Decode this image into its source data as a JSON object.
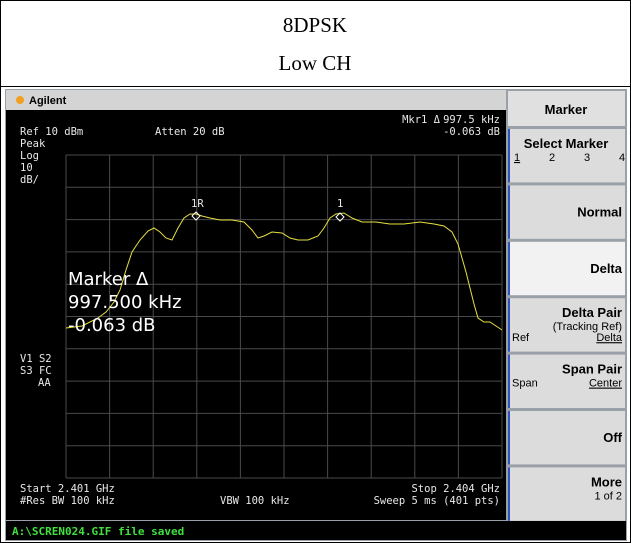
{
  "header": {
    "title": "8DPSK",
    "subtitle": "Low CH"
  },
  "screen": {
    "brand": "Agilent",
    "marker_readout": {
      "label": "Mkr1 Δ",
      "frequency": "997.5 kHz",
      "level": "-0.063 dB"
    },
    "ref": "Ref 10 dBm",
    "atten": "Atten 20 dB",
    "scale": [
      "Peak",
      "Log",
      "10",
      "dB/"
    ],
    "marker_box": [
      "Marker Δ",
      "997.500 kHz",
      "-0.063 dB"
    ],
    "flags": [
      "V1 S2",
      "S3 FC",
      "AA"
    ],
    "markers": [
      "1R",
      "1"
    ],
    "start": "Start 2.401 GHz",
    "stop": "Stop 2.404 GHz",
    "rbw": "#Res BW 100 kHz",
    "vbw": "VBW 100 kHz",
    "sweep": "Sweep 5 ms (401 pts)",
    "status": "A:\\SCREN024.GIF file saved"
  },
  "softkeys": {
    "title": "Marker",
    "keys": [
      {
        "label": "Select Marker",
        "options": [
          "1",
          "2",
          "3",
          "4"
        ]
      },
      {
        "label": "Normal"
      },
      {
        "label": "Delta"
      },
      {
        "label": "Delta Pair",
        "note": "(Tracking Ref)",
        "options": [
          "Ref",
          "Delta"
        ]
      },
      {
        "label": "Span Pair",
        "options": [
          "Span",
          "Center"
        ]
      },
      {
        "label": "Off"
      },
      {
        "label": "More",
        "note": "1 of 2"
      }
    ]
  }
}
